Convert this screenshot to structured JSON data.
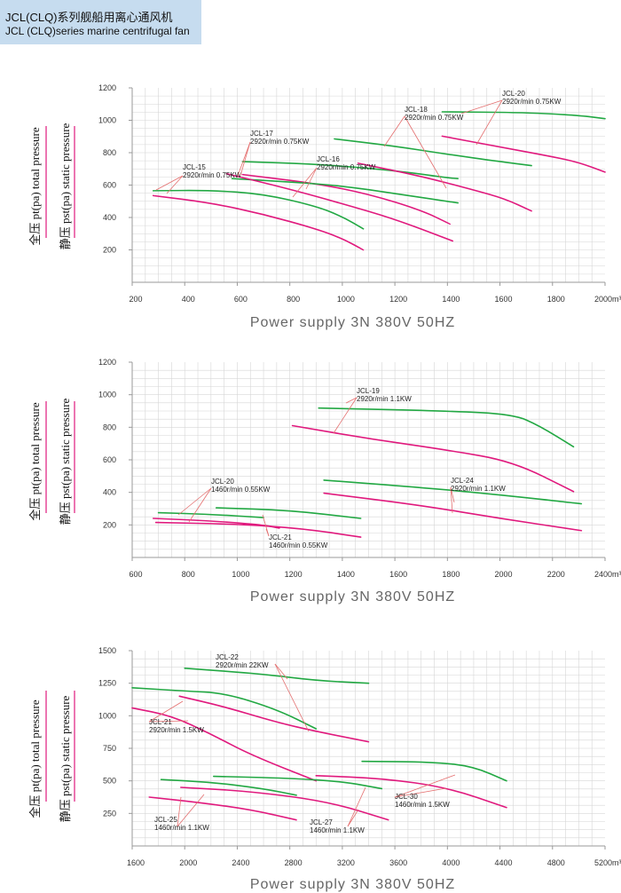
{
  "header": {
    "title": "JCL(CLQ)系列舰船用离心通风机",
    "subtitle": "JCL (CLQ)series marine centrifugal fan"
  },
  "colors": {
    "total": "#22a843",
    "static": "#e0197d",
    "grid": "#d6d6d6",
    "axis": "#999999",
    "leader": "#e46f6f"
  },
  "chart_data": [
    {
      "type": "line",
      "xlim": [
        200,
        2000
      ],
      "ylim": [
        0,
        1200
      ],
      "xticks": [
        "200",
        "400",
        "600",
        "800",
        "1000",
        "1200",
        "1400",
        "1600",
        "1800",
        "2000m³/h"
      ],
      "yticks": [
        "1200",
        "1000",
        "800",
        "600",
        "400",
        "200"
      ],
      "ylabel_total": "全压 pt(pa) total pressure",
      "ylabel_static": "静压 pst(pa) static pressure",
      "footer": "Power supply   3N 380V   50HZ",
      "series": [
        {
          "kind": "total",
          "points": [
            [
              280,
              565
            ],
            [
              500,
              568
            ],
            [
              700,
              545
            ],
            [
              900,
              470
            ],
            [
              1000,
              405
            ],
            [
              1080,
              330
            ]
          ]
        },
        {
          "kind": "static",
          "points": [
            [
              280,
              535
            ],
            [
              500,
              490
            ],
            [
              700,
              420
            ],
            [
              900,
              330
            ],
            [
              1000,
              270
            ],
            [
              1080,
              200
            ]
          ]
        },
        {
          "kind": "total",
          "points": [
            [
              620,
              745
            ],
            [
              900,
              730
            ],
            [
              1200,
              690
            ],
            [
              1400,
              645
            ],
            [
              1440,
              640
            ]
          ]
        },
        {
          "kind": "static",
          "points": [
            [
              620,
              665
            ],
            [
              900,
              610
            ],
            [
              1100,
              545
            ],
            [
              1300,
              445
            ],
            [
              1410,
              360
            ]
          ]
        },
        {
          "kind": "total",
          "points": [
            [
              580,
              640
            ],
            [
              800,
              620
            ],
            [
              1000,
              595
            ],
            [
              1200,
              548
            ],
            [
              1440,
              490
            ]
          ]
        },
        {
          "kind": "static",
          "points": [
            [
              560,
              670
            ],
            [
              800,
              575
            ],
            [
              1000,
              485
            ],
            [
              1200,
              390
            ],
            [
              1420,
              255
            ]
          ]
        },
        {
          "kind": "total",
          "points": [
            [
              970,
              885
            ],
            [
              1200,
              840
            ],
            [
              1400,
              790
            ],
            [
              1600,
              745
            ],
            [
              1720,
              720
            ]
          ]
        },
        {
          "kind": "static",
          "points": [
            [
              1060,
              735
            ],
            [
              1300,
              655
            ],
            [
              1500,
              570
            ],
            [
              1620,
              515
            ],
            [
              1720,
              440
            ]
          ]
        },
        {
          "kind": "total",
          "points": [
            [
              1380,
              1052
            ],
            [
              1700,
              1048
            ],
            [
              1900,
              1030
            ],
            [
              2000,
              1010
            ]
          ]
        },
        {
          "kind": "static",
          "points": [
            [
              1380,
              902
            ],
            [
              1600,
              835
            ],
            [
              1800,
              775
            ],
            [
              1900,
              740
            ],
            [
              2000,
              680
            ]
          ]
        }
      ],
      "annotations": [
        {
          "lines": [
            "JCL-15",
            "2920r/min  0.75KW"
          ]
        },
        {
          "lines": [
            "JCL-17",
            "2920r/min  0.75KW"
          ]
        },
        {
          "lines": [
            "JCL-16",
            "2920r/min  0.75KW"
          ]
        },
        {
          "lines": [
            "JCL-18",
            "2920r/min  0.75KW"
          ]
        },
        {
          "lines": [
            "JCL-20",
            "2920r/min  0.75KW"
          ]
        }
      ]
    },
    {
      "type": "line",
      "xlim": [
        600,
        2400
      ],
      "ylim": [
        0,
        1200
      ],
      "xticks": [
        "600",
        "800",
        "1000",
        "1200",
        "1400",
        "1600",
        "1800",
        "2000",
        "2200",
        "2400m³/h"
      ],
      "yticks": [
        "1200",
        "1000",
        "800",
        "600",
        "400",
        "200"
      ],
      "ylabel_total": "全压 pt(pa) total pressure",
      "ylabel_static": "静压 pst(pa) static pressure",
      "footer": "Power supply   3N 380V   50HZ",
      "series": [
        {
          "kind": "total",
          "points": [
            [
              1310,
              918
            ],
            [
              1800,
              900
            ],
            [
              2050,
              880
            ],
            [
              2150,
              810
            ],
            [
              2280,
              680
            ]
          ]
        },
        {
          "kind": "static",
          "points": [
            [
              1210,
              810
            ],
            [
              1500,
              730
            ],
            [
              1800,
              660
            ],
            [
              2050,
              590
            ],
            [
              2280,
              405
            ]
          ]
        },
        {
          "kind": "total",
          "points": [
            [
              1330,
              475
            ],
            [
              1700,
              430
            ],
            [
              2000,
              385
            ],
            [
              2310,
              330
            ]
          ]
        },
        {
          "kind": "static",
          "points": [
            [
              1330,
              395
            ],
            [
              1700,
              320
            ],
            [
              2000,
              240
            ],
            [
              2310,
              165
            ]
          ]
        },
        {
          "kind": "total",
          "points": [
            [
              700,
              275
            ],
            [
              900,
              265
            ],
            [
              1100,
              245
            ]
          ]
        },
        {
          "kind": "static",
          "points": [
            [
              680,
              240
            ],
            [
              900,
              225
            ],
            [
              1100,
              200
            ],
            [
              1160,
              180
            ]
          ]
        },
        {
          "kind": "total",
          "points": [
            [
              920,
              305
            ],
            [
              1200,
              290
            ],
            [
              1470,
              240
            ]
          ]
        },
        {
          "kind": "static",
          "points": [
            [
              690,
              215
            ],
            [
              1000,
              205
            ],
            [
              1250,
              178
            ],
            [
              1470,
              125
            ]
          ]
        }
      ],
      "annotations": [
        {
          "lines": [
            "JCL-19",
            "2920r/min  1.1KW"
          ]
        },
        {
          "lines": [
            "JCL-24",
            "2920r/min  1.1KW"
          ]
        },
        {
          "lines": [
            "JCL-20",
            "1460r/min  0.55KW"
          ]
        },
        {
          "lines": [
            "JCL-21",
            "1460r/min  0.55KW"
          ]
        }
      ]
    },
    {
      "type": "line",
      "xlim": [
        1600,
        5200
      ],
      "ylim": [
        0,
        1500
      ],
      "xticks": [
        "1600",
        "2000",
        "2400",
        "2800",
        "3200",
        "3600",
        "4000",
        "4400",
        "4800",
        "5200m³/h"
      ],
      "yticks": [
        "1500",
        "1250",
        "1000",
        "750",
        "500",
        "250"
      ],
      "ylabel_total": "全压 pt(pa) total pressure",
      "ylabel_static": "静压 pst(pa) static pressure",
      "footer": "Power supply   3N 380V   50HZ",
      "series": [
        {
          "kind": "total",
          "points": [
            [
              1600,
              1215
            ],
            [
              2000,
              1190
            ],
            [
              2300,
              1175
            ],
            [
              2700,
              1050
            ],
            [
              3000,
              900
            ]
          ]
        },
        {
          "kind": "static",
          "points": [
            [
              1600,
              1060
            ],
            [
              1900,
              1000
            ],
            [
              2200,
              860
            ],
            [
              2500,
              700
            ],
            [
              3000,
              500
            ]
          ]
        },
        {
          "kind": "total",
          "points": [
            [
              2000,
              1365
            ],
            [
              2600,
              1320
            ],
            [
              3000,
              1270
            ],
            [
              3400,
              1250
            ]
          ]
        },
        {
          "kind": "static",
          "points": [
            [
              1960,
              1150
            ],
            [
              2300,
              1070
            ],
            [
              2700,
              950
            ],
            [
              3000,
              880
            ],
            [
              3400,
              800
            ]
          ]
        },
        {
          "kind": "total",
          "points": [
            [
              3350,
              650
            ],
            [
              3900,
              645
            ],
            [
              4200,
              610
            ],
            [
              4450,
              500
            ]
          ]
        },
        {
          "kind": "static",
          "points": [
            [
              3000,
              540
            ],
            [
              3500,
              520
            ],
            [
              4000,
              450
            ],
            [
              4450,
              295
            ]
          ]
        },
        {
          "kind": "total",
          "points": [
            [
              1820,
              510
            ],
            [
              2200,
              490
            ],
            [
              2600,
              440
            ],
            [
              2850,
              390
            ]
          ]
        },
        {
          "kind": "static",
          "points": [
            [
              1730,
              375
            ],
            [
              2100,
              335
            ],
            [
              2500,
              280
            ],
            [
              2850,
              200
            ]
          ]
        },
        {
          "kind": "total",
          "points": [
            [
              2220,
              535
            ],
            [
              2800,
              520
            ],
            [
              3200,
              495
            ],
            [
              3500,
              440
            ]
          ]
        },
        {
          "kind": "static",
          "points": [
            [
              1970,
              450
            ],
            [
              2500,
              420
            ],
            [
              3100,
              340
            ],
            [
              3550,
              200
            ]
          ]
        }
      ],
      "annotations": [
        {
          "lines": [
            "JCL-22",
            "2920r/min  22KW"
          ]
        },
        {
          "lines": [
            "JCL-21",
            "2920r/min  1.5KW"
          ]
        },
        {
          "lines": [
            "JCL-30",
            "1460r/min  1.5KW"
          ]
        },
        {
          "lines": [
            "JCL-25",
            "1460r/min  1.1KW"
          ]
        },
        {
          "lines": [
            "JCL-27",
            "1460r/min  1.1KW"
          ]
        }
      ]
    }
  ]
}
